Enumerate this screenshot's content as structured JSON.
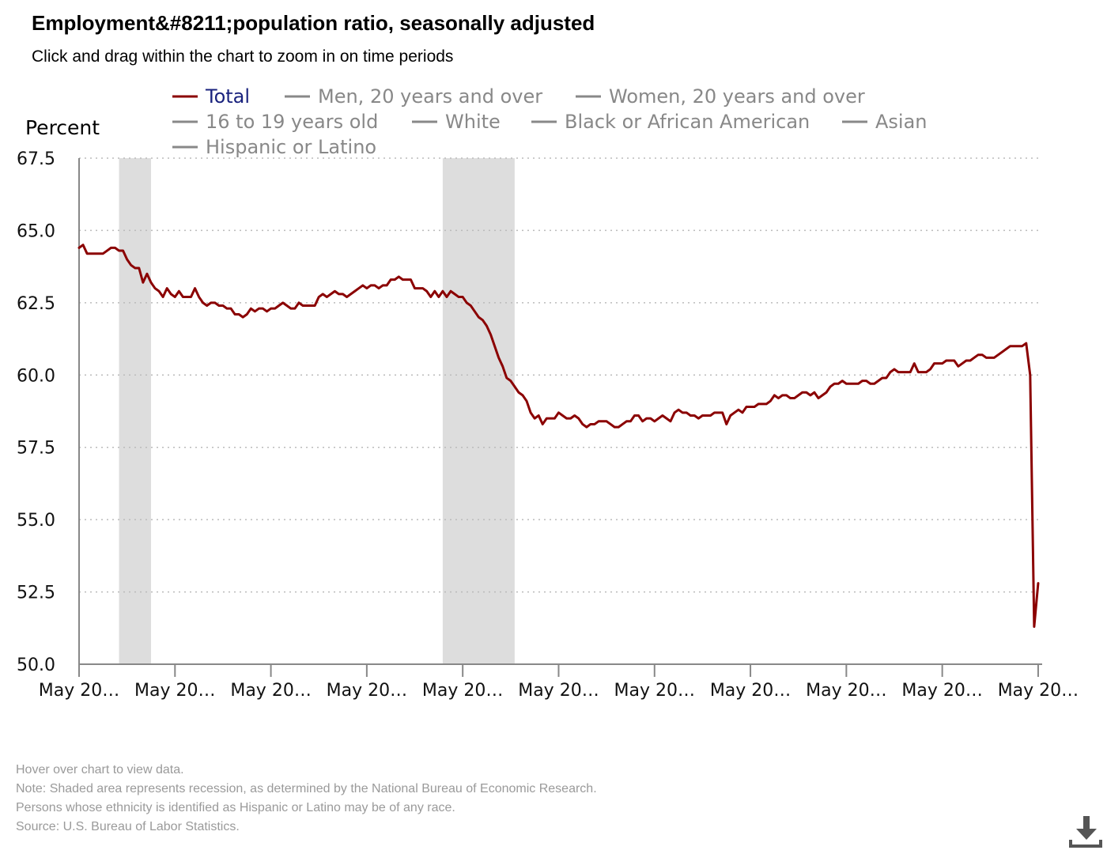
{
  "header": {
    "title": "Employment&#8211;population ratio, seasonally adjusted",
    "subtitle": "Click and drag within the chart to zoom in on time periods"
  },
  "legend": {
    "items": [
      {
        "label": "Total",
        "active": true
      },
      {
        "label": "Men, 20 years and over",
        "active": false
      },
      {
        "label": "Women, 20 years and over",
        "active": false
      },
      {
        "label": "16 to 19 years old",
        "active": false
      },
      {
        "label": "White",
        "active": false
      },
      {
        "label": "Black or African American",
        "active": false
      },
      {
        "label": "Asian",
        "active": false
      },
      {
        "label": "Hispanic or Latino",
        "active": false
      }
    ]
  },
  "notes": {
    "hover": "Hover over chart to view data.",
    "recession": "Note: Shaded area represents recession, as determined by the National Bureau of Economic Research.",
    "hispanic": "Persons whose ethnicity is identified as Hispanic or Latino may be of any race.",
    "source": "Source: U.S. Bureau of Labor Statistics."
  },
  "download": {
    "icon": "download-icon"
  },
  "colors": {
    "series": "#8b0000",
    "recession": "#dddddd",
    "grid": "#bbbbbb",
    "inactive": "#888888",
    "active_label": "#1a237e"
  },
  "chart_data": {
    "type": "line",
    "ylabel": "Percent",
    "ylim": [
      50.0,
      67.5
    ],
    "yticks": [
      "50.0",
      "52.5",
      "55.0",
      "57.5",
      "60.0",
      "62.5",
      "65.0",
      "67.5"
    ],
    "xlim": [
      "2000-05",
      "2020-06"
    ],
    "xtick_labels": [
      "May 20…",
      "May 20…",
      "May 20…",
      "May 20…",
      "May 20…",
      "May 20…",
      "May 20…",
      "May 20…",
      "May 20…",
      "May 20…",
      "May 20…"
    ],
    "xtick_dates": [
      "2000-05",
      "2002-05",
      "2004-05",
      "2006-05",
      "2008-05",
      "2010-05",
      "2012-05",
      "2014-05",
      "2016-05",
      "2018-05",
      "2020-05"
    ],
    "grid": true,
    "recessions": [
      {
        "start": "2001-03",
        "end": "2001-11"
      },
      {
        "start": "2007-12",
        "end": "2009-06"
      }
    ],
    "series": [
      {
        "name": "Total",
        "points": [
          [
            "2000-05",
            64.4
          ],
          [
            "2000-06",
            64.5
          ],
          [
            "2000-07",
            64.2
          ],
          [
            "2000-08",
            64.2
          ],
          [
            "2000-09",
            64.2
          ],
          [
            "2000-10",
            64.2
          ],
          [
            "2000-11",
            64.2
          ],
          [
            "2000-12",
            64.3
          ],
          [
            "2001-01",
            64.4
          ],
          [
            "2001-02",
            64.4
          ],
          [
            "2001-03",
            64.3
          ],
          [
            "2001-04",
            64.3
          ],
          [
            "2001-05",
            64.0
          ],
          [
            "2001-06",
            63.8
          ],
          [
            "2001-07",
            63.7
          ],
          [
            "2001-08",
            63.7
          ],
          [
            "2001-09",
            63.2
          ],
          [
            "2001-10",
            63.5
          ],
          [
            "2001-11",
            63.2
          ],
          [
            "2001-12",
            63.0
          ],
          [
            "2002-01",
            62.9
          ],
          [
            "2002-02",
            62.7
          ],
          [
            "2002-03",
            63.0
          ],
          [
            "2002-04",
            62.8
          ],
          [
            "2002-05",
            62.7
          ],
          [
            "2002-06",
            62.9
          ],
          [
            "2002-07",
            62.7
          ],
          [
            "2002-08",
            62.7
          ],
          [
            "2002-09",
            62.7
          ],
          [
            "2002-10",
            63.0
          ],
          [
            "2002-11",
            62.7
          ],
          [
            "2002-12",
            62.5
          ],
          [
            "2003-01",
            62.4
          ],
          [
            "2003-02",
            62.5
          ],
          [
            "2003-03",
            62.5
          ],
          [
            "2003-04",
            62.4
          ],
          [
            "2003-05",
            62.4
          ],
          [
            "2003-06",
            62.3
          ],
          [
            "2003-07",
            62.3
          ],
          [
            "2003-08",
            62.1
          ],
          [
            "2003-09",
            62.1
          ],
          [
            "2003-10",
            62.0
          ],
          [
            "2003-11",
            62.1
          ],
          [
            "2003-12",
            62.3
          ],
          [
            "2004-01",
            62.2
          ],
          [
            "2004-02",
            62.3
          ],
          [
            "2004-03",
            62.3
          ],
          [
            "2004-04",
            62.2
          ],
          [
            "2004-05",
            62.3
          ],
          [
            "2004-06",
            62.3
          ],
          [
            "2004-07",
            62.4
          ],
          [
            "2004-08",
            62.5
          ],
          [
            "2004-09",
            62.4
          ],
          [
            "2004-10",
            62.3
          ],
          [
            "2004-11",
            62.3
          ],
          [
            "2004-12",
            62.5
          ],
          [
            "2005-01",
            62.4
          ],
          [
            "2005-02",
            62.4
          ],
          [
            "2005-03",
            62.4
          ],
          [
            "2005-04",
            62.4
          ],
          [
            "2005-05",
            62.7
          ],
          [
            "2005-06",
            62.8
          ],
          [
            "2005-07",
            62.7
          ],
          [
            "2005-08",
            62.8
          ],
          [
            "2005-09",
            62.9
          ],
          [
            "2005-10",
            62.8
          ],
          [
            "2005-11",
            62.8
          ],
          [
            "2005-12",
            62.7
          ],
          [
            "2006-01",
            62.8
          ],
          [
            "2006-02",
            62.9
          ],
          [
            "2006-03",
            63.0
          ],
          [
            "2006-04",
            63.1
          ],
          [
            "2006-05",
            63.0
          ],
          [
            "2006-06",
            63.1
          ],
          [
            "2006-07",
            63.1
          ],
          [
            "2006-08",
            63.0
          ],
          [
            "2006-09",
            63.1
          ],
          [
            "2006-10",
            63.1
          ],
          [
            "2006-11",
            63.3
          ],
          [
            "2006-12",
            63.3
          ],
          [
            "2007-01",
            63.4
          ],
          [
            "2007-02",
            63.3
          ],
          [
            "2007-03",
            63.3
          ],
          [
            "2007-04",
            63.3
          ],
          [
            "2007-05",
            63.0
          ],
          [
            "2007-06",
            63.0
          ],
          [
            "2007-07",
            63.0
          ],
          [
            "2007-08",
            62.9
          ],
          [
            "2007-09",
            62.7
          ],
          [
            "2007-10",
            62.9
          ],
          [
            "2007-11",
            62.7
          ],
          [
            "2007-12",
            62.9
          ],
          [
            "2008-01",
            62.7
          ],
          [
            "2008-02",
            62.9
          ],
          [
            "2008-03",
            62.8
          ],
          [
            "2008-04",
            62.7
          ],
          [
            "2008-05",
            62.7
          ],
          [
            "2008-06",
            62.5
          ],
          [
            "2008-07",
            62.4
          ],
          [
            "2008-08",
            62.2
          ],
          [
            "2008-09",
            62.0
          ],
          [
            "2008-10",
            61.9
          ],
          [
            "2008-11",
            61.7
          ],
          [
            "2008-12",
            61.4
          ],
          [
            "2009-01",
            61.0
          ],
          [
            "2009-02",
            60.6
          ],
          [
            "2009-03",
            60.3
          ],
          [
            "2009-04",
            59.9
          ],
          [
            "2009-05",
            59.8
          ],
          [
            "2009-06",
            59.6
          ],
          [
            "2009-07",
            59.4
          ],
          [
            "2009-08",
            59.3
          ],
          [
            "2009-09",
            59.1
          ],
          [
            "2009-10",
            58.7
          ],
          [
            "2009-11",
            58.5
          ],
          [
            "2009-12",
            58.6
          ],
          [
            "2010-01",
            58.3
          ],
          [
            "2010-02",
            58.5
          ],
          [
            "2010-03",
            58.5
          ],
          [
            "2010-04",
            58.5
          ],
          [
            "2010-05",
            58.7
          ],
          [
            "2010-06",
            58.6
          ],
          [
            "2010-07",
            58.5
          ],
          [
            "2010-08",
            58.5
          ],
          [
            "2010-09",
            58.6
          ],
          [
            "2010-10",
            58.5
          ],
          [
            "2010-11",
            58.3
          ],
          [
            "2010-12",
            58.2
          ],
          [
            "2011-01",
            58.3
          ],
          [
            "2011-02",
            58.3
          ],
          [
            "2011-03",
            58.4
          ],
          [
            "2011-04",
            58.4
          ],
          [
            "2011-05",
            58.4
          ],
          [
            "2011-06",
            58.3
          ],
          [
            "2011-07",
            58.2
          ],
          [
            "2011-08",
            58.2
          ],
          [
            "2011-09",
            58.3
          ],
          [
            "2011-10",
            58.4
          ],
          [
            "2011-11",
            58.4
          ],
          [
            "2011-12",
            58.6
          ],
          [
            "2012-01",
            58.6
          ],
          [
            "2012-02",
            58.4
          ],
          [
            "2012-03",
            58.5
          ],
          [
            "2012-04",
            58.5
          ],
          [
            "2012-05",
            58.4
          ],
          [
            "2012-06",
            58.5
          ],
          [
            "2012-07",
            58.6
          ],
          [
            "2012-08",
            58.5
          ],
          [
            "2012-09",
            58.4
          ],
          [
            "2012-10",
            58.7
          ],
          [
            "2012-11",
            58.8
          ],
          [
            "2012-12",
            58.7
          ],
          [
            "2013-01",
            58.7
          ],
          [
            "2013-02",
            58.6
          ],
          [
            "2013-03",
            58.6
          ],
          [
            "2013-04",
            58.5
          ],
          [
            "2013-05",
            58.6
          ],
          [
            "2013-06",
            58.6
          ],
          [
            "2013-07",
            58.6
          ],
          [
            "2013-08",
            58.7
          ],
          [
            "2013-09",
            58.7
          ],
          [
            "2013-10",
            58.7
          ],
          [
            "2013-11",
            58.3
          ],
          [
            "2013-12",
            58.6
          ],
          [
            "2014-01",
            58.7
          ],
          [
            "2014-02",
            58.8
          ],
          [
            "2014-03",
            58.7
          ],
          [
            "2014-04",
            58.9
          ],
          [
            "2014-05",
            58.9
          ],
          [
            "2014-06",
            58.9
          ],
          [
            "2014-07",
            59.0
          ],
          [
            "2014-08",
            59.0
          ],
          [
            "2014-09",
            59.0
          ],
          [
            "2014-10",
            59.1
          ],
          [
            "2014-11",
            59.3
          ],
          [
            "2014-12",
            59.2
          ],
          [
            "2015-01",
            59.3
          ],
          [
            "2015-02",
            59.3
          ],
          [
            "2015-03",
            59.2
          ],
          [
            "2015-04",
            59.2
          ],
          [
            "2015-05",
            59.3
          ],
          [
            "2015-06",
            59.4
          ],
          [
            "2015-07",
            59.4
          ],
          [
            "2015-08",
            59.3
          ],
          [
            "2015-09",
            59.4
          ],
          [
            "2015-10",
            59.2
          ],
          [
            "2015-11",
            59.3
          ],
          [
            "2015-12",
            59.4
          ],
          [
            "2016-01",
            59.6
          ],
          [
            "2016-02",
            59.7
          ],
          [
            "2016-03",
            59.7
          ],
          [
            "2016-04",
            59.8
          ],
          [
            "2016-05",
            59.7
          ],
          [
            "2016-06",
            59.7
          ],
          [
            "2016-07",
            59.7
          ],
          [
            "2016-08",
            59.7
          ],
          [
            "2016-09",
            59.8
          ],
          [
            "2016-10",
            59.8
          ],
          [
            "2016-11",
            59.7
          ],
          [
            "2016-12",
            59.7
          ],
          [
            "2017-01",
            59.8
          ],
          [
            "2017-02",
            59.9
          ],
          [
            "2017-03",
            59.9
          ],
          [
            "2017-04",
            60.1
          ],
          [
            "2017-05",
            60.2
          ],
          [
            "2017-06",
            60.1
          ],
          [
            "2017-07",
            60.1
          ],
          [
            "2017-08",
            60.1
          ],
          [
            "2017-09",
            60.1
          ],
          [
            "2017-10",
            60.4
          ],
          [
            "2017-11",
            60.1
          ],
          [
            "2017-12",
            60.1
          ],
          [
            "2018-01",
            60.1
          ],
          [
            "2018-02",
            60.2
          ],
          [
            "2018-03",
            60.4
          ],
          [
            "2018-04",
            60.4
          ],
          [
            "2018-05",
            60.4
          ],
          [
            "2018-06",
            60.5
          ],
          [
            "2018-07",
            60.5
          ],
          [
            "2018-08",
            60.5
          ],
          [
            "2018-09",
            60.3
          ],
          [
            "2018-10",
            60.4
          ],
          [
            "2018-11",
            60.5
          ],
          [
            "2018-12",
            60.5
          ],
          [
            "2019-01",
            60.6
          ],
          [
            "2019-02",
            60.7
          ],
          [
            "2019-03",
            60.7
          ],
          [
            "2019-04",
            60.6
          ],
          [
            "2019-05",
            60.6
          ],
          [
            "2019-06",
            60.6
          ],
          [
            "2019-07",
            60.7
          ],
          [
            "2019-08",
            60.8
          ],
          [
            "2019-09",
            60.9
          ],
          [
            "2019-10",
            61.0
          ],
          [
            "2019-11",
            61.0
          ],
          [
            "2019-12",
            61.0
          ],
          [
            "2020-01",
            61.0
          ],
          [
            "2020-02",
            61.1
          ],
          [
            "2020-03",
            60.0
          ],
          [
            "2020-04",
            51.3
          ],
          [
            "2020-05",
            52.8
          ]
        ]
      }
    ]
  }
}
